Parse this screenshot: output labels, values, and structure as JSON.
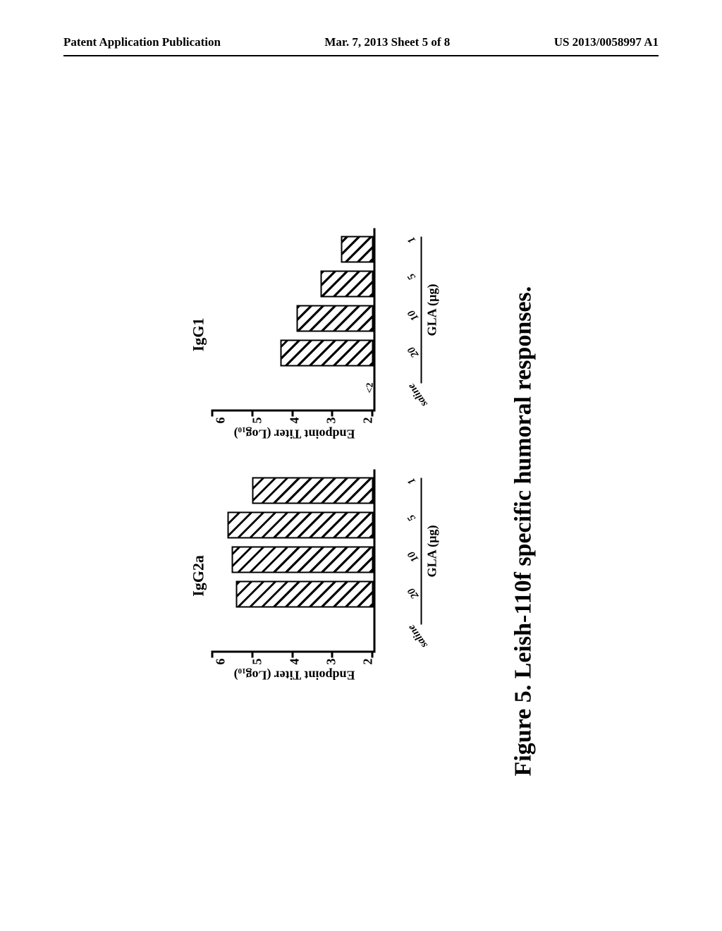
{
  "header": {
    "left": "Patent Application Publication",
    "center": "Mar. 7, 2013  Sheet 5 of 8",
    "right": "US 2013/0058997 A1"
  },
  "caption": "Figure 5.  Leish-110f specific humoral responses.",
  "axis": {
    "y_label": "Endpoint Titer (Log₁₀)",
    "y_ticks": [
      6,
      5,
      4,
      3,
      2
    ],
    "y_min": 2,
    "y_max": 6
  },
  "x_categories": [
    "saline",
    "20",
    "10",
    "5",
    "1"
  ],
  "x_sub_label": "GLA (µg)",
  "left_chart": {
    "title": "IgG2a",
    "values": [
      null,
      5.4,
      5.5,
      5.6,
      5.0
    ]
  },
  "right_chart": {
    "title": "IgG1",
    "lt2_index": 0,
    "values": [
      null,
      4.3,
      3.9,
      3.3,
      2.8
    ]
  },
  "style": {
    "bar_border": "#000000",
    "bg": "#ffffff",
    "hatch_angle": 45
  }
}
